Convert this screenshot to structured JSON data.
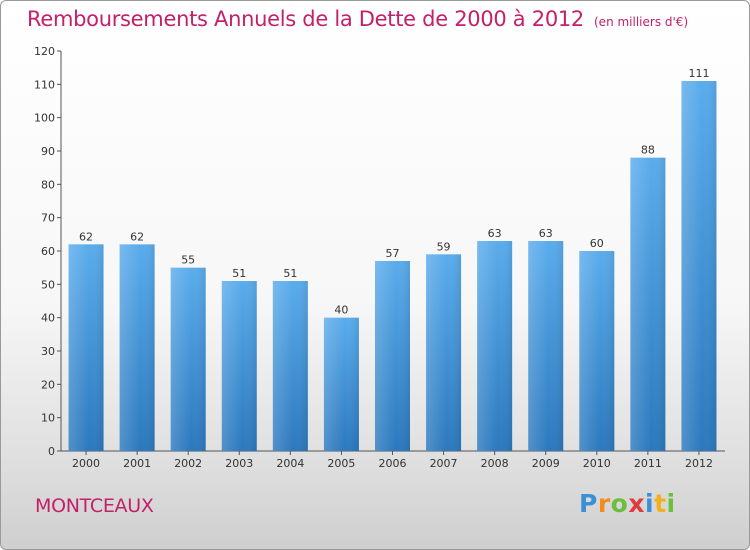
{
  "title": "Remboursements Annuels de la Dette de 2000 à 2012",
  "subtitle": "(en milliers d'€)",
  "commune": "MONTCEAUX",
  "logo": {
    "letters": [
      "P",
      "r",
      "o",
      "x",
      "i",
      "t",
      "i"
    ],
    "colors": [
      "#3a8fd6",
      "#f28c1e",
      "#6cbf3a",
      "#e23b3b",
      "#3a8fd6",
      "#f2b21e",
      "#6cbf3a"
    ]
  },
  "colors": {
    "bar_top": "#5aacec",
    "bar_bottom": "#2b78bd",
    "axis": "#555555",
    "grid": "#dddddd"
  },
  "chart_data": {
    "type": "bar",
    "categories": [
      "2000",
      "2001",
      "2002",
      "2003",
      "2004",
      "2005",
      "2006",
      "2007",
      "2008",
      "2009",
      "2010",
      "2011",
      "2012"
    ],
    "values": [
      62,
      62,
      55,
      51,
      51,
      40,
      57,
      59,
      63,
      63,
      60,
      88,
      111
    ],
    "title": "Remboursements Annuels de la Dette de 2000 à 2012",
    "ylim": [
      0,
      120
    ],
    "yticks": [
      0,
      10,
      20,
      30,
      40,
      50,
      60,
      70,
      80,
      90,
      100,
      110,
      120
    ],
    "grid": false,
    "legend": "none"
  }
}
